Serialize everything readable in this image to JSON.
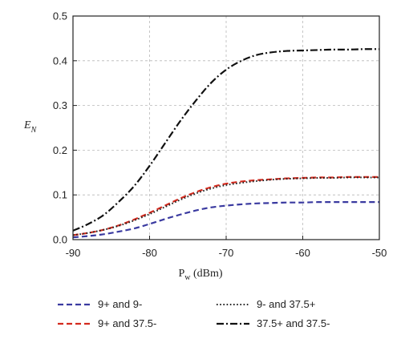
{
  "chart_data": {
    "type": "line",
    "xlabel": {
      "main": "P",
      "sub": "w",
      "rest": " (dBm)"
    },
    "ylabel": {
      "main": "E",
      "sub": "N"
    },
    "xlim": [
      -90,
      -50
    ],
    "ylim": [
      0,
      0.5
    ],
    "xticks": [
      -90,
      -80,
      -70,
      -60,
      -50
    ],
    "yticks": [
      0.0,
      0.1,
      0.2,
      0.3,
      0.4,
      0.5
    ],
    "xtick_labels": [
      "-90",
      "-80",
      "-70",
      "-60",
      "-50"
    ],
    "ytick_labels": [
      "0.0",
      "0.1",
      "0.2",
      "0.3",
      "0.4",
      "0.5"
    ],
    "grid": true,
    "legend_position": "bottom",
    "series": [
      {
        "name": "9+ and 9-",
        "color": "#3a3aa0",
        "dash": "dashed",
        "x": [
          -90,
          -88,
          -86,
          -84,
          -82,
          -80,
          -78,
          -76,
          -74,
          -72,
          -70,
          -68,
          -66,
          -64,
          -62,
          -60,
          -58,
          -56,
          -54,
          -52,
          -50
        ],
        "y": [
          0.005,
          0.008,
          0.012,
          0.018,
          0.025,
          0.035,
          0.046,
          0.056,
          0.065,
          0.072,
          0.076,
          0.079,
          0.081,
          0.082,
          0.083,
          0.083,
          0.084,
          0.084,
          0.084,
          0.084,
          0.084
        ]
      },
      {
        "name": "9+ and 37.5-",
        "color": "#d42a1e",
        "dash": "dashed",
        "x": [
          -90,
          -88,
          -86,
          -84,
          -82,
          -80,
          -78,
          -76,
          -74,
          -72,
          -70,
          -68,
          -66,
          -64,
          -62,
          -60,
          -58,
          -56,
          -54,
          -52,
          -50
        ],
        "y": [
          0.01,
          0.015,
          0.022,
          0.032,
          0.045,
          0.06,
          0.076,
          0.092,
          0.106,
          0.117,
          0.125,
          0.13,
          0.133,
          0.135,
          0.137,
          0.138,
          0.139,
          0.139,
          0.14,
          0.14,
          0.14
        ]
      },
      {
        "name": "9- and 37.5+",
        "color": "#222222",
        "dash": "dotted",
        "x": [
          -90,
          -88,
          -86,
          -84,
          -82,
          -80,
          -78,
          -76,
          -74,
          -72,
          -70,
          -68,
          -66,
          -64,
          -62,
          -60,
          -58,
          -56,
          -54,
          -52,
          -50
        ],
        "y": [
          0.01,
          0.015,
          0.022,
          0.031,
          0.043,
          0.057,
          0.073,
          0.089,
          0.103,
          0.114,
          0.122,
          0.127,
          0.131,
          0.134,
          0.136,
          0.137,
          0.138,
          0.138,
          0.139,
          0.139,
          0.139
        ]
      },
      {
        "name": "37.5+ and 37.5-",
        "color": "#111111",
        "dash": "dashdot",
        "x": [
          -90,
          -88,
          -86,
          -84,
          -82,
          -80,
          -78,
          -76,
          -74,
          -72,
          -70,
          -68,
          -66,
          -64,
          -62,
          -60,
          -58,
          -56,
          -54,
          -52,
          -50
        ],
        "y": [
          0.02,
          0.035,
          0.055,
          0.085,
          0.12,
          0.165,
          0.215,
          0.265,
          0.31,
          0.35,
          0.38,
          0.4,
          0.413,
          0.419,
          0.422,
          0.423,
          0.424,
          0.425,
          0.425,
          0.426,
          0.426
        ]
      }
    ]
  }
}
